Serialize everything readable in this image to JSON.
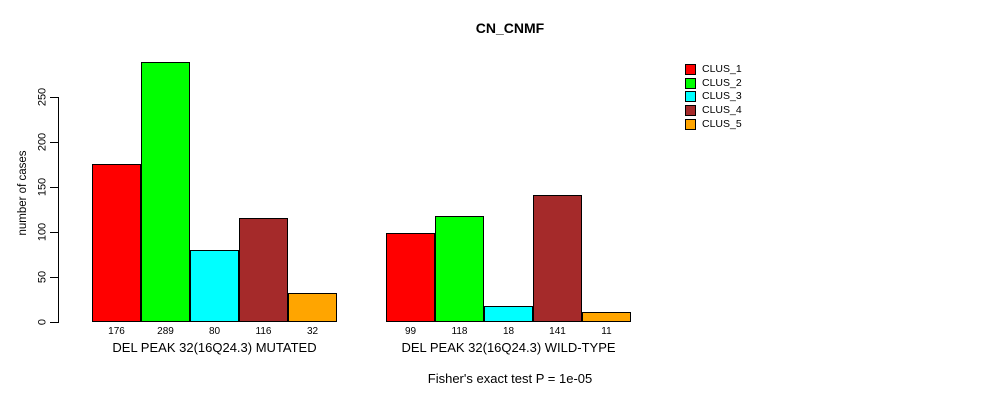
{
  "chart_data": {
    "type": "bar",
    "title": "CN_CNMF",
    "ylabel": "number of cases",
    "ylim": [
      0,
      290
    ],
    "yticks": [
      0,
      50,
      100,
      150,
      200,
      250
    ],
    "grid": false,
    "legend_position": "right",
    "categories": [
      "DEL PEAK 32(16Q24.3) MUTATED",
      "DEL PEAK 32(16Q24.3) WILD-TYPE"
    ],
    "series": [
      {
        "name": "CLUS_1",
        "color": "#FF0000",
        "values": [
          176,
          99
        ]
      },
      {
        "name": "CLUS_2",
        "color": "#00FF00",
        "values": [
          289,
          118
        ]
      },
      {
        "name": "CLUS_3",
        "color": "#00FFFF",
        "values": [
          80,
          18
        ]
      },
      {
        "name": "CLUS_4",
        "color": "#A52A2A",
        "values": [
          116,
          141
        ]
      },
      {
        "name": "CLUS_5",
        "color": "#FFA500",
        "values": [
          32,
          11
        ]
      }
    ],
    "bar_value_labels": {
      "DEL PEAK 32(16Q24.3) MUTATED": [
        176,
        289,
        80,
        116,
        32
      ],
      "DEL PEAK 32(16Q24.3) WILD-TYPE": [
        99,
        118,
        18,
        141,
        11
      ]
    },
    "annotation": "Fisher's exact test P = 1e-05",
    "axis_color": "#000000",
    "background_color": "#FFFFFF"
  }
}
